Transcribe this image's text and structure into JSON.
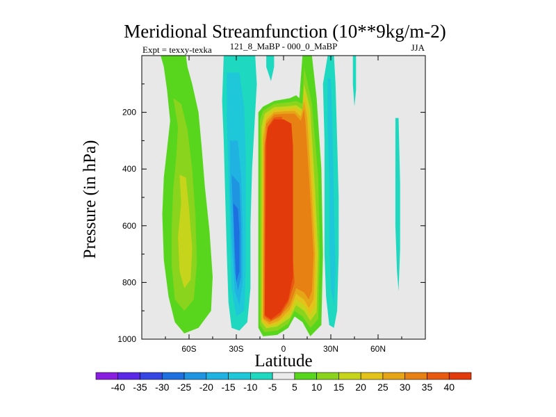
{
  "chart_data": {
    "type": "heatmap",
    "title": "Meridional Streamfunction (10**9kg/m-2)",
    "experiment_label": "Expt = texxy-texka",
    "comparison_label": "121_8_MaBP - 000_0_MaBP",
    "season_label": "JJA",
    "xlabel": "Latitude",
    "ylabel": "Pressure (in hPa)",
    "xlim": [
      -90,
      90
    ],
    "ylim": [
      1000,
      0
    ],
    "x_ticks": [
      {
        "value": -60,
        "label": "60S"
      },
      {
        "value": -30,
        "label": "30S"
      },
      {
        "value": 0,
        "label": "0"
      },
      {
        "value": 30,
        "label": "30N"
      },
      {
        "value": 60,
        "label": "60N"
      }
    ],
    "y_ticks": [
      {
        "value": 200,
        "label": "200"
      },
      {
        "value": 400,
        "label": "400"
      },
      {
        "value": 600,
        "label": "600"
      },
      {
        "value": 800,
        "label": "800"
      },
      {
        "value": 1000,
        "label": "1000"
      }
    ],
    "missing_color": "#e8e8e8",
    "colorbar": {
      "labels": [
        "-40",
        "-35",
        "-30",
        "-25",
        "-20",
        "-15",
        "-10",
        "-5",
        "5",
        "10",
        "15",
        "20",
        "25",
        "30",
        "35",
        "40"
      ],
      "colors": [
        "#8a1ee0",
        "#5a28e6",
        "#3546e2",
        "#1e6fe0",
        "#1f95e2",
        "#20b3e2",
        "#1ec8d8",
        "#1ed8bf",
        "#ebebeb",
        "#58d61e",
        "#8ad41e",
        "#c7d41c",
        "#e3c21a",
        "#e6a417",
        "#e88114",
        "#e85a10",
        "#e33a0c"
      ]
    },
    "contours": [
      {
        "name": "sh-cell-outer",
        "color": "#58d61e",
        "points": [
          [
            -78,
            0
          ],
          [
            -76,
            40
          ],
          [
            -74,
            120
          ],
          [
            -72,
            230
          ],
          [
            -74,
            330
          ],
          [
            -76,
            430
          ],
          [
            -77,
            560
          ],
          [
            -76,
            720
          ],
          [
            -73,
            850
          ],
          [
            -69,
            940
          ],
          [
            -63,
            980
          ],
          [
            -54,
            960
          ],
          [
            -46,
            900
          ],
          [
            -45,
            780
          ],
          [
            -47,
            620
          ],
          [
            -50,
            460
          ],
          [
            -52,
            320
          ],
          [
            -54,
            200
          ],
          [
            -58,
            100
          ],
          [
            -61,
            40
          ],
          [
            -62,
            0
          ]
        ]
      },
      {
        "name": "sh-cell-mid",
        "color": "#8ad41e",
        "points": [
          [
            -70,
            150
          ],
          [
            -67,
            250
          ],
          [
            -68,
            350
          ],
          [
            -70,
            470
          ],
          [
            -71,
            600
          ],
          [
            -71,
            740
          ],
          [
            -69,
            860
          ],
          [
            -63,
            900
          ],
          [
            -57,
            860
          ],
          [
            -55,
            730
          ],
          [
            -56,
            560
          ],
          [
            -58,
            400
          ],
          [
            -61,
            260
          ],
          [
            -65,
            170
          ]
        ]
      },
      {
        "name": "sh-cell-core",
        "color": "#c7d41c",
        "points": [
          [
            -66,
            420
          ],
          [
            -65,
            520
          ],
          [
            -67,
            640
          ],
          [
            -66,
            760
          ],
          [
            -63,
            820
          ],
          [
            -59,
            790
          ],
          [
            -58,
            680
          ],
          [
            -60,
            540
          ],
          [
            -62,
            430
          ]
        ]
      },
      {
        "name": "st-band-outer",
        "color": "#1ed8bf",
        "points": [
          [
            -38,
            0
          ],
          [
            -39,
            160
          ],
          [
            -38,
            300
          ],
          [
            -37,
            500
          ],
          [
            -36,
            700
          ],
          [
            -35,
            870
          ],
          [
            -33,
            960
          ],
          [
            -28,
            970
          ],
          [
            -23,
            940
          ],
          [
            -21,
            820
          ],
          [
            -21,
            600
          ],
          [
            -20,
            400
          ],
          [
            -18,
            200
          ],
          [
            -17,
            100
          ],
          [
            -18,
            0
          ]
        ]
      },
      {
        "name": "st-band-2",
        "color": "#1ec8d8",
        "points": [
          [
            -36,
            60
          ],
          [
            -36,
            230
          ],
          [
            -35,
            420
          ],
          [
            -34,
            620
          ],
          [
            -33,
            820
          ],
          [
            -30,
            920
          ],
          [
            -25,
            900
          ],
          [
            -24,
            760
          ],
          [
            -24,
            560
          ],
          [
            -24,
            360
          ],
          [
            -25,
            180
          ],
          [
            -28,
            60
          ]
        ]
      },
      {
        "name": "st-band-3",
        "color": "#20b3e2",
        "points": [
          [
            -34,
            300
          ],
          [
            -34,
            470
          ],
          [
            -33,
            640
          ],
          [
            -31,
            830
          ],
          [
            -28,
            880
          ],
          [
            -26,
            800
          ],
          [
            -26,
            600
          ],
          [
            -27,
            420
          ],
          [
            -29,
            300
          ]
        ]
      },
      {
        "name": "st-band-4",
        "color": "#1f95e2",
        "points": [
          [
            -33,
            420
          ],
          [
            -32,
            580
          ],
          [
            -31,
            760
          ],
          [
            -29,
            830
          ],
          [
            -27,
            780
          ],
          [
            -27,
            600
          ],
          [
            -28,
            450
          ]
        ]
      },
      {
        "name": "st-band-5",
        "color": "#1e6fe0",
        "points": [
          [
            -32,
            520
          ],
          [
            -31,
            680
          ],
          [
            -30,
            800
          ],
          [
            -28,
            760
          ],
          [
            -28,
            620
          ],
          [
            -29,
            540
          ]
        ]
      },
      {
        "name": "st-strip-upper",
        "color": "#1ed8bf",
        "points": [
          [
            -11,
            0
          ],
          [
            -11,
            40
          ],
          [
            -8,
            90
          ],
          [
            -6,
            40
          ],
          [
            -6,
            0
          ]
        ]
      },
      {
        "name": "hadley-outer",
        "color": "#58d61e",
        "points": [
          [
            -16,
            200
          ],
          [
            -16,
            500
          ],
          [
            -16,
            960
          ],
          [
            -13,
            990
          ],
          [
            -4,
            985
          ],
          [
            3,
            960
          ],
          [
            7,
            920
          ],
          [
            12,
            940
          ],
          [
            17,
            990
          ],
          [
            24,
            950
          ],
          [
            25,
            700
          ],
          [
            24,
            400
          ],
          [
            21,
            150
          ],
          [
            18,
            0
          ],
          [
            12,
            0
          ],
          [
            10,
            150
          ],
          [
            8,
            140
          ],
          [
            4,
            150
          ],
          [
            -6,
            160
          ],
          [
            -13,
            180
          ]
        ]
      },
      {
        "name": "hadley-10",
        "color": "#8ad41e",
        "points": [
          [
            -15,
            230
          ],
          [
            -15,
            950
          ],
          [
            -12,
            975
          ],
          [
            -4,
            970
          ],
          [
            3,
            945
          ],
          [
            7,
            900
          ],
          [
            12,
            920
          ],
          [
            17,
            960
          ],
          [
            22,
            930
          ],
          [
            23,
            700
          ],
          [
            22,
            430
          ],
          [
            18,
            170
          ],
          [
            13,
            40
          ],
          [
            12,
            170
          ],
          [
            8,
            160
          ],
          [
            3,
            165
          ],
          [
            -6,
            170
          ],
          [
            -13,
            195
          ]
        ]
      },
      {
        "name": "hadley-15",
        "color": "#c7d41c",
        "points": [
          [
            -14,
            250
          ],
          [
            -14,
            940
          ],
          [
            -11,
            962
          ],
          [
            -4,
            955
          ],
          [
            4,
            925
          ],
          [
            8,
            880
          ],
          [
            13,
            900
          ],
          [
            17,
            935
          ],
          [
            21,
            905
          ],
          [
            22,
            700
          ],
          [
            20,
            470
          ],
          [
            17,
            190
          ],
          [
            13,
            100
          ],
          [
            12,
            190
          ],
          [
            8,
            175
          ],
          [
            3,
            178
          ],
          [
            -6,
            182
          ],
          [
            -12,
            205
          ]
        ]
      },
      {
        "name": "hadley-20",
        "color": "#e3c21a",
        "points": [
          [
            -13,
            270
          ],
          [
            -14,
            935
          ],
          [
            -10,
            955
          ],
          [
            -4,
            945
          ],
          [
            4,
            910
          ],
          [
            8,
            860
          ],
          [
            13,
            880
          ],
          [
            17,
            915
          ],
          [
            20,
            880
          ],
          [
            21,
            700
          ],
          [
            19,
            480
          ],
          [
            16,
            200
          ],
          [
            13,
            130
          ],
          [
            12,
            200
          ],
          [
            8,
            185
          ],
          [
            2,
            188
          ],
          [
            -6,
            192
          ],
          [
            -11,
            215
          ]
        ]
      },
      {
        "name": "hadley-25",
        "color": "#e6a417",
        "points": [
          [
            -13,
            290
          ],
          [
            -13,
            930
          ],
          [
            -9,
            948
          ],
          [
            -3,
            935
          ],
          [
            4,
            895
          ],
          [
            8,
            840
          ],
          [
            13,
            860
          ],
          [
            16,
            890
          ],
          [
            19,
            860
          ],
          [
            20,
            700
          ],
          [
            18,
            490
          ],
          [
            15,
            220
          ],
          [
            13,
            160
          ],
          [
            11,
            215
          ],
          [
            7,
            195
          ],
          [
            1,
            196
          ],
          [
            -6,
            200
          ],
          [
            -11,
            228
          ]
        ]
      },
      {
        "name": "hadley-30",
        "color": "#e88114",
        "points": [
          [
            -12,
            310
          ],
          [
            -13,
            925
          ],
          [
            -9,
            940
          ],
          [
            -3,
            925
          ],
          [
            4,
            880
          ],
          [
            8,
            820
          ],
          [
            13,
            835
          ],
          [
            16,
            860
          ],
          [
            18,
            830
          ],
          [
            19,
            700
          ],
          [
            17,
            500
          ],
          [
            14,
            240
          ],
          [
            13,
            190
          ],
          [
            11,
            230
          ],
          [
            7,
            205
          ],
          [
            1,
            205
          ],
          [
            -6,
            208
          ],
          [
            -11,
            240
          ]
        ]
      },
      {
        "name": "hadley-35",
        "color": "#e85a10",
        "points": [
          [
            -12,
            320
          ],
          [
            -12,
            920
          ],
          [
            -8,
            935
          ],
          [
            -2,
            915
          ],
          [
            3,
            870
          ],
          [
            7,
            800
          ],
          [
            -1,
            215
          ],
          [
            -6,
            218
          ],
          [
            -10,
            250
          ]
        ]
      },
      {
        "name": "hadley-40",
        "color": "#e33a0c",
        "points": [
          [
            -11,
            300
          ],
          [
            -12,
            915
          ],
          [
            -8,
            930
          ],
          [
            -2,
            905
          ],
          [
            3,
            860
          ],
          [
            6,
            780
          ],
          [
            6,
            640
          ],
          [
            6,
            470
          ],
          [
            6,
            320
          ],
          [
            5,
            240
          ],
          [
            0,
            225
          ],
          [
            -6,
            225
          ],
          [
            -10,
            255
          ]
        ]
      },
      {
        "name": "ferrel-nh-outer",
        "color": "#1ed8bf",
        "points": [
          [
            25,
            100
          ],
          [
            26,
            300
          ],
          [
            26,
            500
          ],
          [
            26,
            700
          ],
          [
            27,
            850
          ],
          [
            29,
            950
          ],
          [
            32,
            960
          ],
          [
            34,
            900
          ],
          [
            35,
            700
          ],
          [
            35,
            500
          ],
          [
            34,
            300
          ],
          [
            33,
            100
          ],
          [
            32,
            0
          ],
          [
            28,
            0
          ]
        ]
      },
      {
        "name": "ferrel-nh-2",
        "color": "#1ec8d8",
        "points": [
          [
            28,
            80
          ],
          [
            28,
            250
          ],
          [
            29,
            450
          ],
          [
            29,
            650
          ],
          [
            30,
            820
          ],
          [
            32,
            880
          ],
          [
            33,
            760
          ],
          [
            32,
            500
          ],
          [
            31,
            250
          ],
          [
            30,
            80
          ]
        ]
      },
      {
        "name": "nh-strip-45",
        "color": "#1ed8bf",
        "points": [
          [
            44,
            0
          ],
          [
            44,
            100
          ],
          [
            45,
            180
          ],
          [
            46,
            120
          ],
          [
            46,
            0
          ]
        ]
      },
      {
        "name": "nh-strip-72",
        "color": "#1ed8bf",
        "points": [
          [
            71,
            220
          ],
          [
            71,
            400
          ],
          [
            71,
            600
          ],
          [
            72,
            760
          ],
          [
            73,
            830
          ],
          [
            74,
            680
          ],
          [
            74,
            450
          ],
          [
            73,
            220
          ]
        ]
      }
    ]
  }
}
